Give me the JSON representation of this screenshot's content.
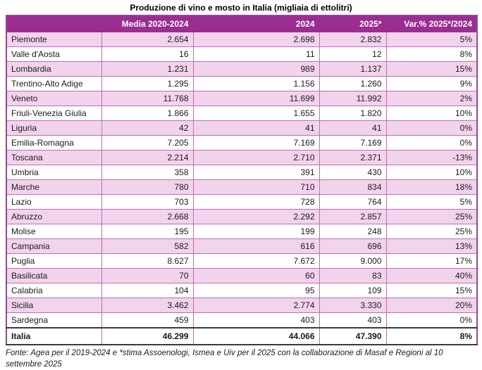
{
  "title": "Produzione di vino e mosto in Italia (migliaia di ettolitri)",
  "table": {
    "columns": {
      "region": "",
      "media": "Media 2020-2024",
      "y2024": "2024",
      "y2025": "2025*",
      "var": "Var.% 2025*/2024"
    },
    "rows": [
      {
        "region": "Piemonte",
        "media": "2.654",
        "y2024": "2.698",
        "y2025": "2.832",
        "var": "5%"
      },
      {
        "region": "Valle d'Aosta",
        "media": "16",
        "y2024": "11",
        "y2025": "12",
        "var": "8%"
      },
      {
        "region": "Lombardia",
        "media": "1.231",
        "y2024": "989",
        "y2025": "1.137",
        "var": "15%"
      },
      {
        "region": "Trentino-Alto Adige",
        "media": "1.295",
        "y2024": "1.156",
        "y2025": "1.260",
        "var": "9%"
      },
      {
        "region": "Veneto",
        "media": "11.768",
        "y2024": "11.699",
        "y2025": "11.992",
        "var": "2%"
      },
      {
        "region": "Friuli-Venezia Giulia",
        "media": "1.866",
        "y2024": "1.655",
        "y2025": "1.820",
        "var": "10%"
      },
      {
        "region": "Liguria",
        "media": "42",
        "y2024": "41",
        "y2025": "41",
        "var": "0%"
      },
      {
        "region": "Emilia-Romagna",
        "media": "7.205",
        "y2024": "7.169",
        "y2025": "7.169",
        "var": "0%"
      },
      {
        "region": "Toscana",
        "media": "2.214",
        "y2024": "2.710",
        "y2025": "2.371",
        "var": "-13%"
      },
      {
        "region": "Umbria",
        "media": "358",
        "y2024": "391",
        "y2025": "430",
        "var": "10%"
      },
      {
        "region": "Marche",
        "media": "780",
        "y2024": "710",
        "y2025": "834",
        "var": "18%"
      },
      {
        "region": "Lazio",
        "media": "703",
        "y2024": "728",
        "y2025": "764",
        "var": "5%"
      },
      {
        "region": "Abruzzo",
        "media": "2.668",
        "y2024": "2.292",
        "y2025": "2.857",
        "var": "25%"
      },
      {
        "region": "Molise",
        "media": "195",
        "y2024": "199",
        "y2025": "248",
        "var": "25%"
      },
      {
        "region": "Campania",
        "media": "582",
        "y2024": "616",
        "y2025": "696",
        "var": "13%"
      },
      {
        "region": "Puglia",
        "media": "8.627",
        "y2024": "7.672",
        "y2025": "9.000",
        "var": "17%"
      },
      {
        "region": "Basilicata",
        "media": "70",
        "y2024": "60",
        "y2025": "83",
        "var": "40%"
      },
      {
        "region": "Calabria",
        "media": "104",
        "y2024": "95",
        "y2025": "109",
        "var": "15%"
      },
      {
        "region": "Sicilia",
        "media": "3.462",
        "y2024": "2.774",
        "y2025": "3.330",
        "var": "20%"
      },
      {
        "region": "Sardegna",
        "media": "459",
        "y2024": "403",
        "y2025": "403",
        "var": "0%"
      }
    ],
    "total": {
      "region": "Italia",
      "media": "46.299",
      "y2024": "44.066",
      "y2025": "47.390",
      "var": "8%"
    }
  },
  "footer": "Fonte: Agea per il 2019-2024 e *stima Assoenologi, Ismea e Uiv per il 2025 con la collaborazione di Masaf e Regioni al 10 settembre 2025",
  "colors": {
    "header_bg": "#9b2d92",
    "header_text": "#ffffff",
    "row_pink": "#f2d3ec",
    "row_white": "#ffffff",
    "grid_line": "#c16bb8",
    "outer_border": "#95498e",
    "total_border": "#3a3a3a",
    "text": "#1a1a1a"
  },
  "chart_data": {
    "type": "table",
    "title": "Produzione di vino e mosto in Italia (migliaia di ettolitri)",
    "columns": [
      "Media 2020-2024",
      "2024",
      "2025*",
      "Var.% 2025*/2024"
    ],
    "categories": [
      "Piemonte",
      "Valle d'Aosta",
      "Lombardia",
      "Trentino-Alto Adige",
      "Veneto",
      "Friuli-Venezia Giulia",
      "Liguria",
      "Emilia-Romagna",
      "Toscana",
      "Umbria",
      "Marche",
      "Lazio",
      "Abruzzo",
      "Molise",
      "Campania",
      "Puglia",
      "Basilicata",
      "Calabria",
      "Sicilia",
      "Sardegna"
    ],
    "series": [
      {
        "name": "Media 2020-2024",
        "values": [
          2654,
          16,
          1231,
          1295,
          11768,
          1866,
          42,
          7205,
          2214,
          358,
          780,
          703,
          2668,
          195,
          582,
          8627,
          70,
          104,
          3462,
          459
        ]
      },
      {
        "name": "2024",
        "values": [
          2698,
          11,
          989,
          1156,
          11699,
          1655,
          41,
          7169,
          2710,
          391,
          710,
          728,
          2292,
          199,
          616,
          7672,
          60,
          95,
          2774,
          403
        ]
      },
      {
        "name": "2025*",
        "values": [
          2832,
          12,
          1137,
          1260,
          11992,
          1820,
          41,
          7169,
          2371,
          430,
          834,
          764,
          2857,
          248,
          696,
          9000,
          83,
          109,
          3330,
          403
        ]
      },
      {
        "name": "Var.% 2025*/2024",
        "unit": "%",
        "values": [
          5,
          8,
          15,
          9,
          2,
          10,
          0,
          0,
          -13,
          10,
          18,
          5,
          25,
          25,
          13,
          17,
          40,
          15,
          20,
          0
        ]
      }
    ],
    "total_row": {
      "name": "Italia",
      "media_2020_2024": 46299,
      "y2024": 44066,
      "y2025": 47390,
      "var_pct": 8
    },
    "source_note": "Fonte: Agea per il 2019-2024 e *stima Assoenologi, Ismea e Uiv per il 2025 con la collaborazione di Masaf e Regioni al 10 settembre 2025"
  }
}
